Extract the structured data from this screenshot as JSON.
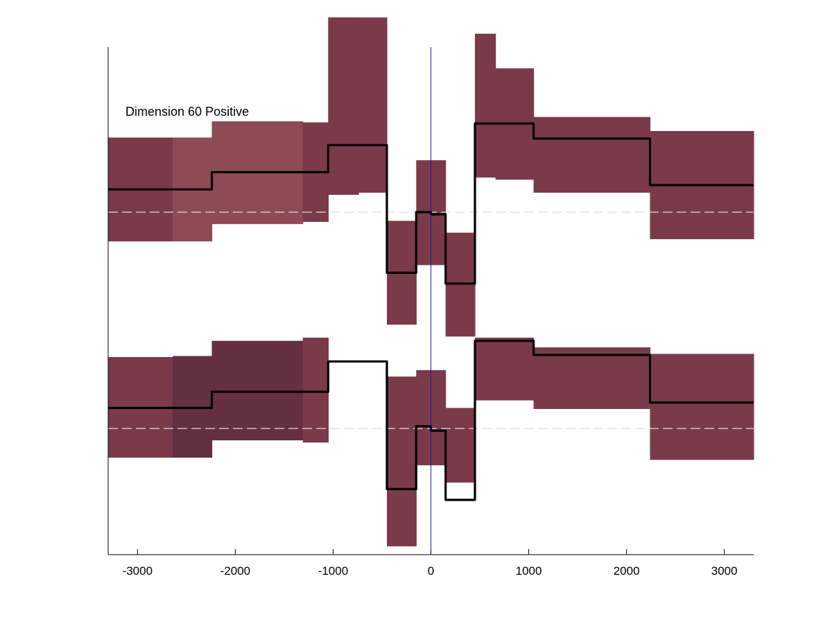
{
  "chart_data": {
    "type": "area",
    "annotation": "Dimension 60 Positive",
    "xlim": [
      -3300,
      3300
    ],
    "xticks": [
      -3000,
      -2000,
      -1000,
      0,
      1000,
      2000,
      3000
    ],
    "xtick_labels": [
      "-3000",
      "-2000",
      "-1000",
      "0",
      "1000",
      "2000",
      "3000"
    ],
    "yticks_visible": false,
    "grid": false,
    "legend": "none",
    "vertical_marker_x": 0,
    "colors": {
      "band": "#7a3a4a",
      "band_light": "#8e4a55",
      "band_dark": "#652f42",
      "line": "#000000",
      "vline": "#1a1aa6",
      "dashed": "#e8d8dc"
    },
    "dashed_levels": [
      0.0,
      1.0
    ],
    "upper_band": [
      {
        "x0": -3300,
        "x1": -2640,
        "low": -0.345,
        "high": 0.135,
        "shade": "band"
      },
      {
        "x0": -2640,
        "x1": -2240,
        "low": -0.345,
        "high": 0.135,
        "shade": "band_light"
      },
      {
        "x0": -2240,
        "x1": -1310,
        "low": -0.42,
        "high": 0.055,
        "shade": "band_light"
      },
      {
        "x0": -1310,
        "x1": -1050,
        "low": -0.415,
        "high": 0.045,
        "shade": "band"
      },
      {
        "x0": -1050,
        "x1": -740,
        "low": -0.9,
        "high": -0.08,
        "shade": "band"
      },
      {
        "x0": -740,
        "x1": -450,
        "low": -0.9,
        "high": -0.09,
        "shade": "band"
      },
      {
        "x0": -450,
        "x1": -150,
        "low": 0.04,
        "high": 0.52,
        "shade": "band"
      },
      {
        "x0": -150,
        "x1": 150,
        "low": -0.24,
        "high": 0.245,
        "shade": "band"
      },
      {
        "x0": 150,
        "x1": 450,
        "low": 0.095,
        "high": 0.575,
        "shade": "band"
      },
      {
        "x0": 450,
        "x1": 660,
        "low": -0.825,
        "high": -0.16,
        "shade": "band"
      },
      {
        "x0": 660,
        "x1": 1050,
        "low": -0.665,
        "high": -0.15,
        "shade": "band"
      },
      {
        "x0": 1050,
        "x1": 2240,
        "low": -0.44,
        "high": -0.09,
        "shade": "band"
      },
      {
        "x0": 2240,
        "x1": 3300,
        "low": -0.375,
        "high": 0.125,
        "shade": "band"
      }
    ],
    "upper_line": [
      {
        "x0": -3300,
        "x1": -2240,
        "y": -0.105
      },
      {
        "x0": -2240,
        "x1": -1050,
        "y": -0.185
      },
      {
        "x0": -1050,
        "x1": -450,
        "y": -0.31
      },
      {
        "x0": -450,
        "x1": -150,
        "y": 0.28
      },
      {
        "x0": -150,
        "x1": 0,
        "y": 0.0
      },
      {
        "x0": 0,
        "x1": 150,
        "y": 0.01
      },
      {
        "x0": 150,
        "x1": 450,
        "y": 0.33
      },
      {
        "x0": 450,
        "x1": 1050,
        "y": -0.41
      },
      {
        "x0": 1050,
        "x1": 2240,
        "y": -0.34
      },
      {
        "x0": 2240,
        "x1": 3300,
        "y": -0.125
      }
    ],
    "lower_band": [
      {
        "x0": -3300,
        "x1": -2640,
        "low": 0.67,
        "high": 1.135,
        "shade": "band"
      },
      {
        "x0": -2640,
        "x1": -2240,
        "low": 0.665,
        "high": 1.135,
        "shade": "band_dark"
      },
      {
        "x0": -2240,
        "x1": -1310,
        "low": 0.595,
        "high": 1.055,
        "shade": "band_dark"
      },
      {
        "x0": -1310,
        "x1": -1050,
        "low": 0.58,
        "high": 1.065,
        "shade": "band"
      },
      {
        "x0": -1050,
        "x1": -740,
        "low": -0.9,
        "high": -0.08,
        "shade": "band"
      },
      {
        "x0": -450,
        "x1": -150,
        "low": 0.76,
        "high": 1.545,
        "shade": "band"
      },
      {
        "x0": -150,
        "x1": 150,
        "low": 0.73,
        "high": 1.17,
        "shade": "band"
      },
      {
        "x0": 150,
        "x1": 450,
        "low": 0.905,
        "high": 1.25,
        "shade": "band"
      },
      {
        "x0": 450,
        "x1": 1050,
        "low": 0.58,
        "high": 0.87,
        "shade": "band"
      },
      {
        "x0": 1050,
        "x1": 2240,
        "low": 0.625,
        "high": 0.91,
        "shade": "band"
      },
      {
        "x0": 2240,
        "x1": 3300,
        "low": 0.655,
        "high": 1.145,
        "shade": "band"
      }
    ],
    "lower_line": [
      {
        "x0": -3300,
        "x1": -2240,
        "y": 0.905
      },
      {
        "x0": -2240,
        "x1": -1050,
        "y": 0.83
      },
      {
        "x0": -1050,
        "x1": -450,
        "y": 0.69
      },
      {
        "x0": -450,
        "x1": -150,
        "y": 1.28
      },
      {
        "x0": -150,
        "x1": 0,
        "y": 0.99
      },
      {
        "x0": 0,
        "x1": 150,
        "y": 1.01
      },
      {
        "x0": 150,
        "x1": 450,
        "y": 1.33
      },
      {
        "x0": 450,
        "x1": 1050,
        "y": 0.595
      },
      {
        "x0": 1050,
        "x1": 2240,
        "y": 0.66
      },
      {
        "x0": 2240,
        "x1": 3300,
        "y": 0.88
      }
    ]
  }
}
